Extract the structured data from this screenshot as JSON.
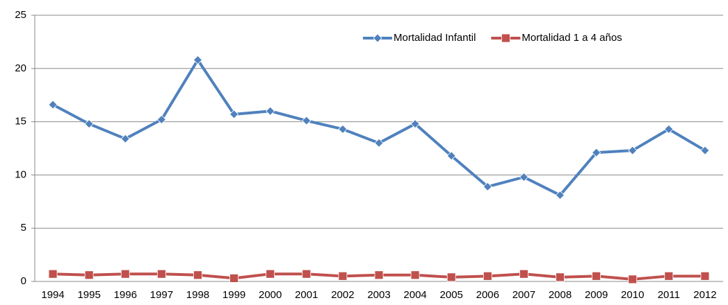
{
  "chart_data": {
    "type": "line",
    "categories": [
      "1994",
      "1995",
      "1996",
      "1997",
      "1998",
      "1999",
      "2000",
      "2001",
      "2002",
      "2003",
      "2004",
      "2005",
      "2006",
      "2007",
      "2008",
      "2009",
      "2010",
      "2011",
      "2012"
    ],
    "series": [
      {
        "name": "Mortalidad Infantil",
        "color": "#4f81bd",
        "marker": "diamond",
        "values": [
          16.6,
          14.8,
          13.4,
          15.2,
          20.8,
          15.7,
          16.0,
          15.1,
          14.3,
          13.0,
          14.8,
          11.8,
          8.9,
          9.8,
          8.1,
          12.1,
          12.3,
          14.3,
          12.3
        ]
      },
      {
        "name": "Mortalidad  1 a 4 años",
        "color": "#c0504d",
        "marker": "square",
        "values": [
          0.7,
          0.6,
          0.7,
          0.7,
          0.6,
          0.3,
          0.7,
          0.7,
          0.5,
          0.6,
          0.6,
          0.4,
          0.5,
          0.7,
          0.4,
          0.5,
          0.2,
          0.5,
          0.5
        ]
      }
    ],
    "ylim": [
      0,
      25
    ],
    "yticks": [
      0,
      5,
      10,
      15,
      20,
      25
    ],
    "grid": true,
    "legend": "top-right"
  }
}
